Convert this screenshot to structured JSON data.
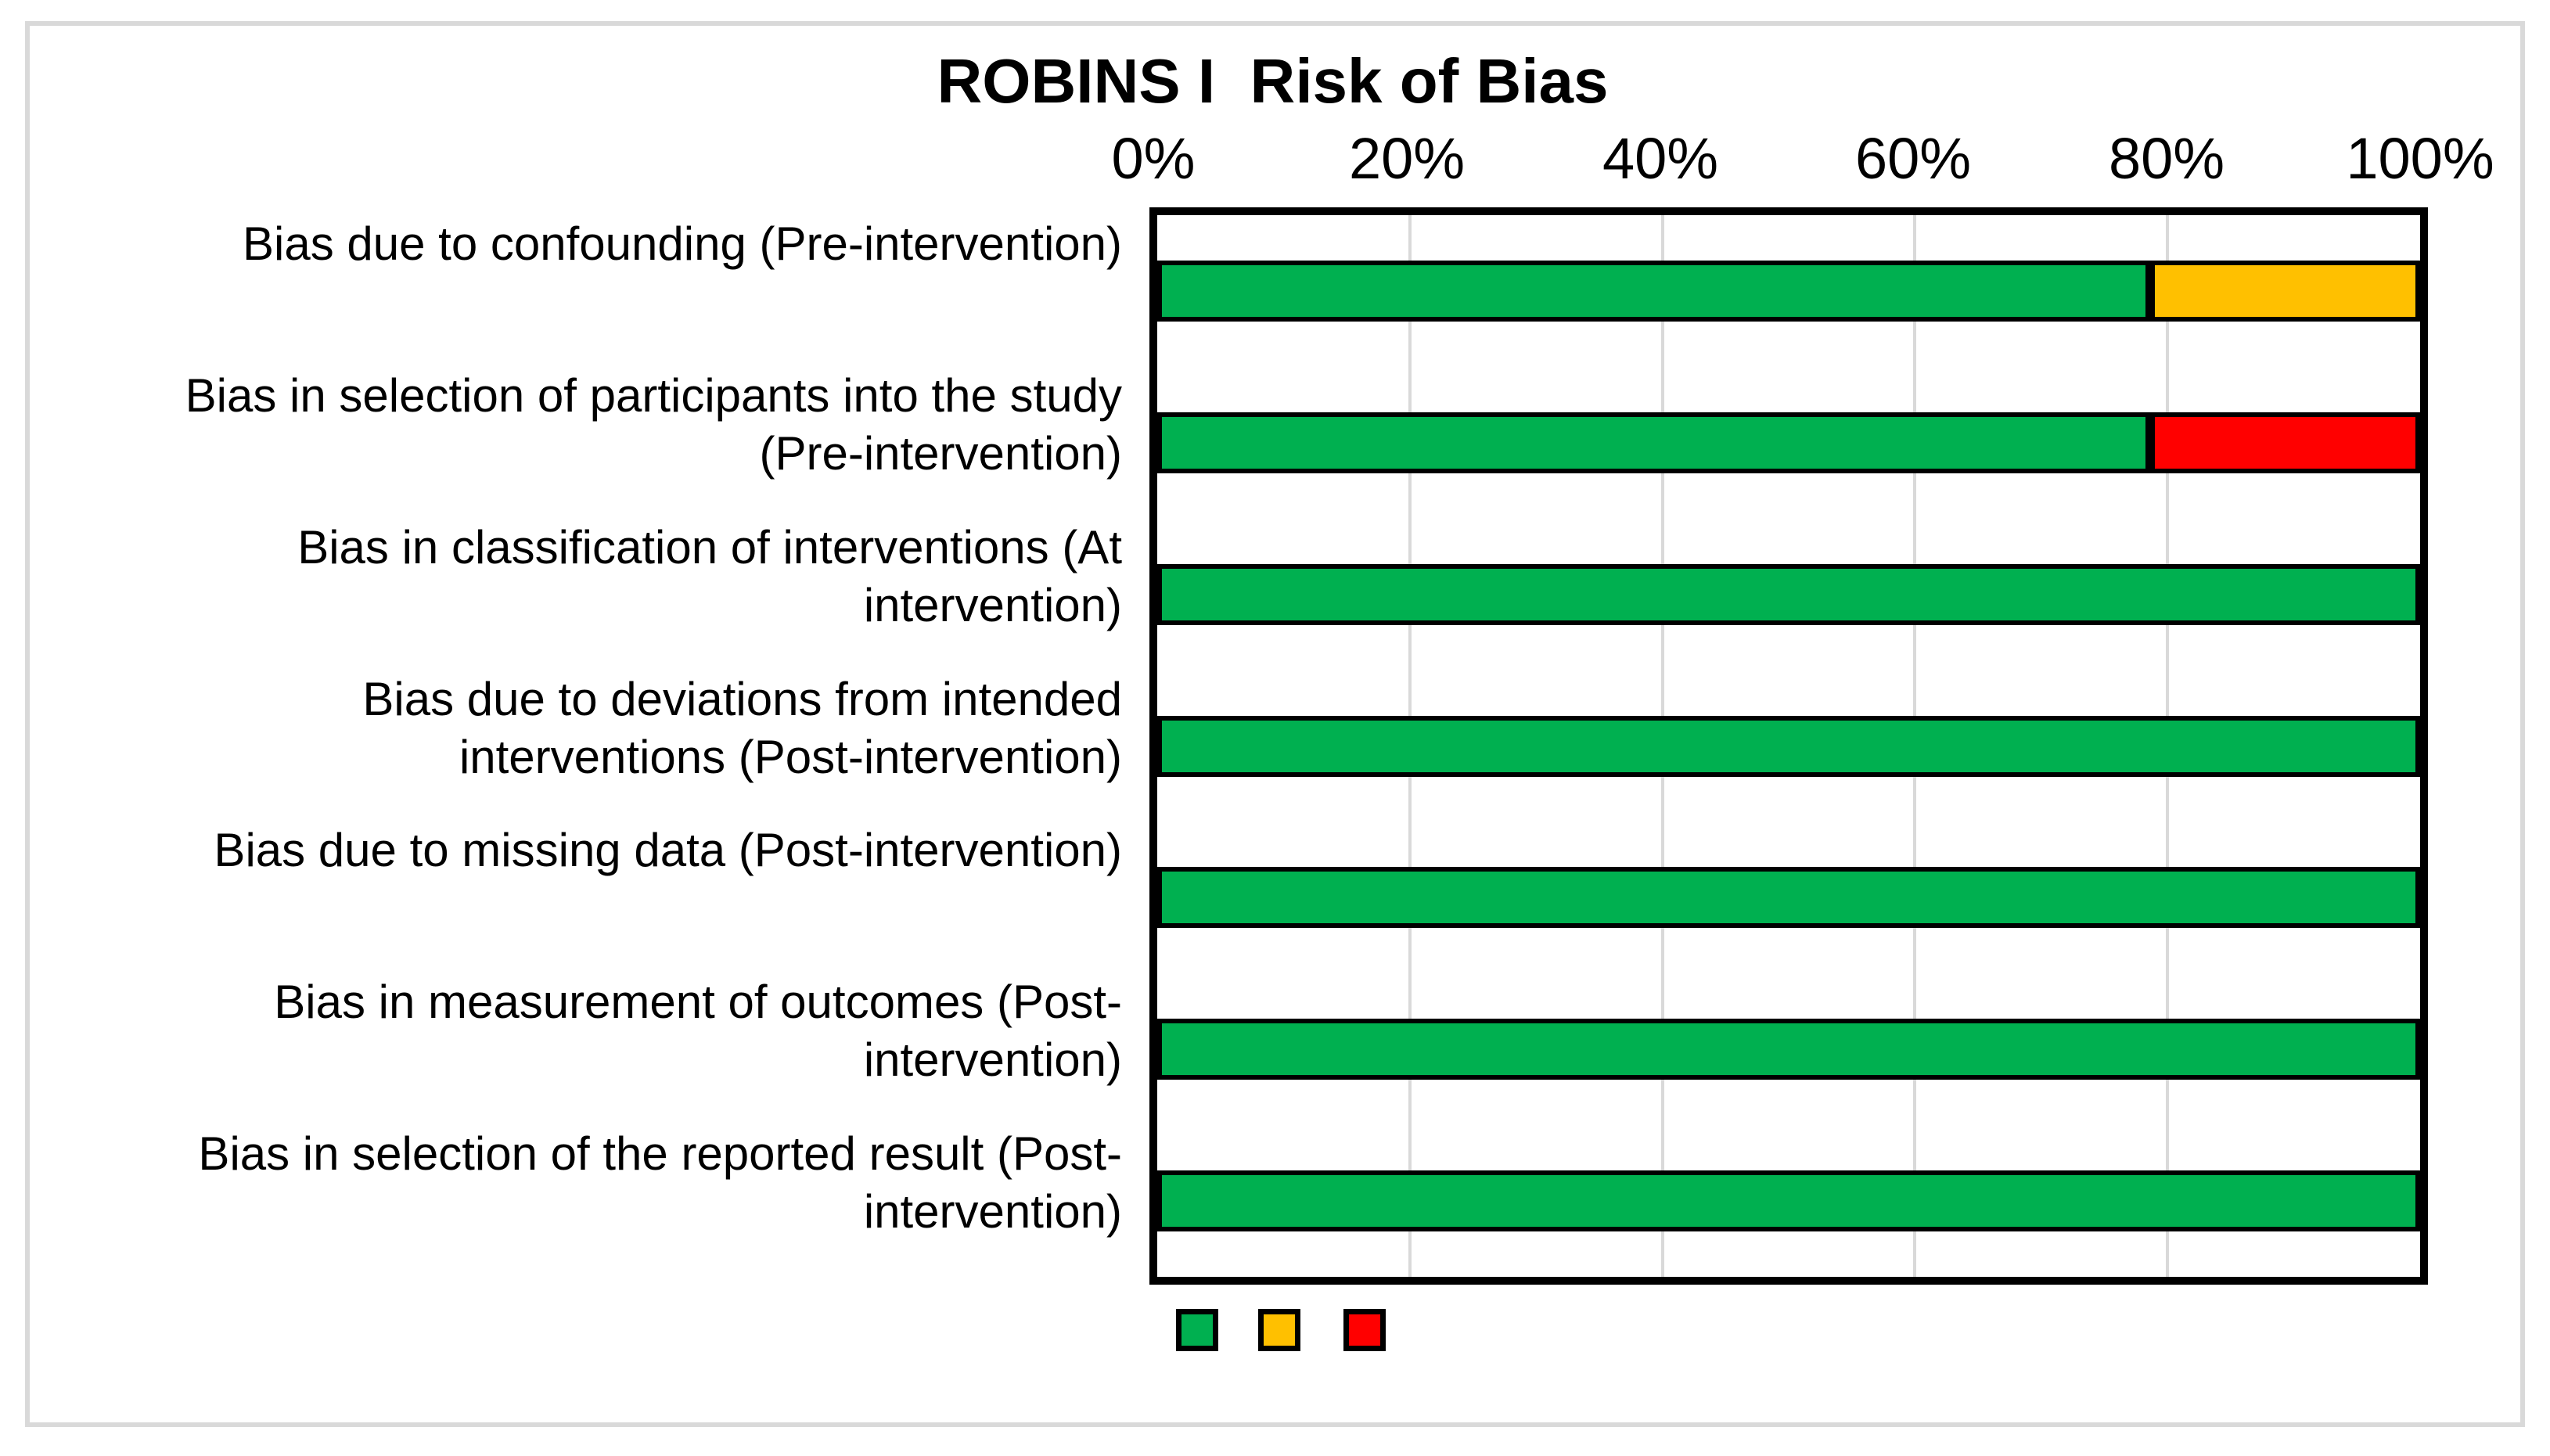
{
  "chart_data": {
    "type": "bar",
    "variant": "horizontal-stacked-100percent",
    "title": "ROBINS I  Risk of Bias",
    "categories": [
      "Bias due to confounding (Pre-intervention)",
      "Bias in selection of participants into the study\n(Pre-intervention)",
      "Bias in classification of interventions (At\nintervention)",
      "Bias due to deviations from intended\ninterventions (Post-intervention)",
      "Bias due to missing data (Post-intervention)",
      "Bias in measurement of outcomes (Post-\nintervention)",
      "Bias in selection of the reported result (Post-\nintervention)"
    ],
    "series": [
      {
        "name": "green",
        "color": "#00B050",
        "values": [
          78.6,
          78.6,
          100,
          100,
          100,
          100,
          100
        ]
      },
      {
        "name": "yellow",
        "color": "#FFC000",
        "values": [
          21.4,
          0,
          0,
          0,
          0,
          0,
          0
        ]
      },
      {
        "name": "red",
        "color": "#FF0000",
        "values": [
          0,
          21.4,
          0,
          0,
          0,
          0,
          0
        ]
      }
    ],
    "x_axis": {
      "ticks": [
        "0%",
        "20%",
        "40%",
        "60%",
        "80%",
        "100%"
      ],
      "range": [
        0,
        100
      ],
      "gridlines": true,
      "tick_position": "top"
    },
    "legend": {
      "position": "bottom-left",
      "swatches": [
        "green",
        "yellow",
        "red"
      ],
      "labels_visible": false
    }
  },
  "colors": {
    "bar_green": "#00B050",
    "bar_yellow": "#FFC000",
    "bar_red": "#FF0000",
    "plot_border": "#000000",
    "gridline": "#D9D9D9",
    "outer_frame": "#D9D9D9",
    "background": "#FFFFFF",
    "text": "#000000"
  }
}
